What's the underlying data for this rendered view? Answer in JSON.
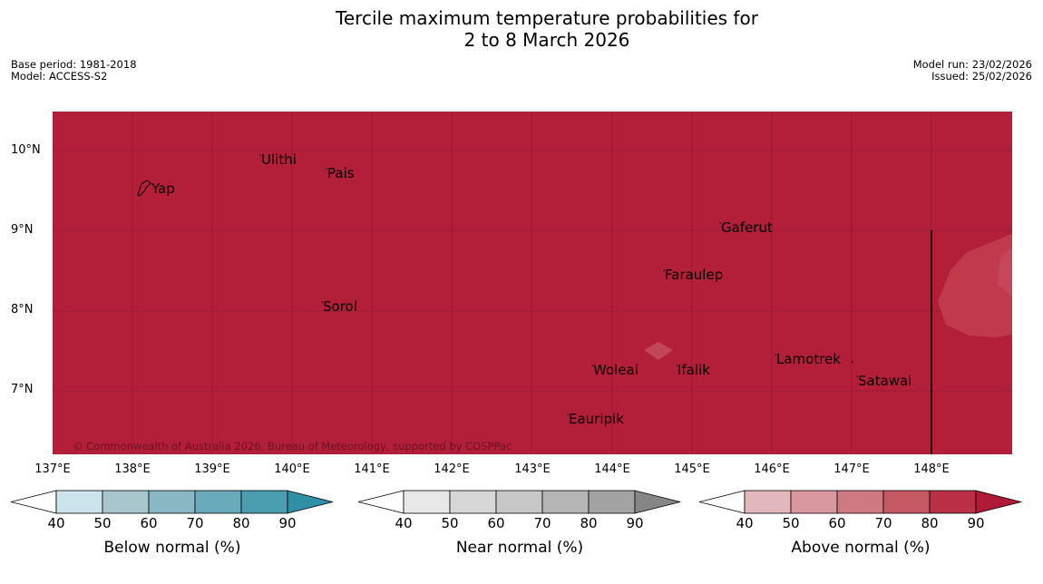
{
  "title_line1": "Tercile maximum temperature probabilities for",
  "title_line2": "2 to 8 March 2026",
  "meta": {
    "base_period": "Base period: 1981-2018",
    "model": "Model: ACCESS-S2",
    "model_run": "Model run: 23/02/2026",
    "issued": "Issued: 25/02/2026"
  },
  "map": {
    "background_color": "#b31e39",
    "copyright": "© Commonwealth of Australia 2026, Bureau of Meteorology, supported by COSPPac",
    "lat_labels": [
      "10°N",
      "9°N",
      "8°N",
      "7°N"
    ],
    "lon_labels": [
      "137°E",
      "138°E",
      "139°E",
      "140°E",
      "141°E",
      "142°E",
      "143°E",
      "144°E",
      "145°E",
      "146°E",
      "147°E",
      "148°E"
    ],
    "places": {
      "yap": "Yap",
      "ulithi": "Ulithi",
      "pais": "Pais",
      "gaferut": "Gaferut",
      "faraulep": "Faraulep",
      "sorol": "Sorol",
      "woleai": "Woleai",
      "ifalik": "Ifalik",
      "lamotrek": "Lamotrek",
      "satawal": "Satawal",
      "eauripik": "Eauripik"
    }
  },
  "legends": [
    {
      "caption": "Below normal (%)",
      "ticks": [
        "40",
        "50",
        "60",
        "70",
        "80",
        "90"
      ],
      "colors": [
        "#cbe3ea",
        "#a8c7cd",
        "#89b7c3",
        "#6aabbb",
        "#4a9eb0",
        "#2f8fa4"
      ]
    },
    {
      "caption": "Near normal (%)",
      "ticks": [
        "40",
        "50",
        "60",
        "70",
        "80",
        "90"
      ],
      "colors": [
        "#e8e8e8",
        "#d7d7d7",
        "#c7c7c7",
        "#b5b5b5",
        "#a3a3a3",
        "#868686"
      ]
    },
    {
      "caption": "Above normal (%)",
      "ticks": [
        "40",
        "50",
        "60",
        "70",
        "80",
        "90"
      ],
      "colors": [
        "#e3b8bd",
        "#d9979f",
        "#cf7a83",
        "#c55862",
        "#b92f45",
        "#b01a37"
      ]
    }
  ]
}
